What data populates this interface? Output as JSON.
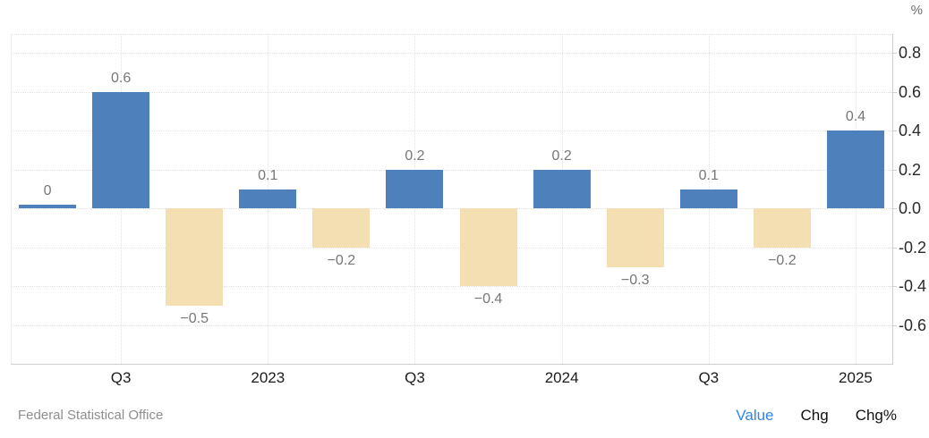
{
  "header": {
    "unit_label": "%"
  },
  "chart_data": {
    "type": "bar",
    "title": "",
    "ylabel": "%",
    "xlabel": "",
    "grid": true,
    "legend_position": "none",
    "ylim": [
      -0.8,
      0.9
    ],
    "values": [
      0,
      0.6,
      -0.5,
      0.1,
      -0.2,
      0.2,
      -0.4,
      0.2,
      -0.3,
      0.1,
      -0.2,
      0.4
    ],
    "bar_labels": [
      "0",
      "0.6",
      "−0.5",
      "0.1",
      "−0.2",
      "0.2",
      "−0.4",
      "0.2",
      "−0.3",
      "0.1",
      "−0.2",
      "0.4"
    ],
    "x_tick_labels": [
      "Q3",
      "2023",
      "Q3",
      "2024",
      "Q3",
      "2025"
    ],
    "x_tick_bar_indexes": [
      1,
      3,
      5,
      7,
      9,
      11
    ],
    "y_tick_labels": [
      "0.8",
      "0.6",
      "0.4",
      "0.2",
      "0.0",
      "-0.2",
      "-0.4",
      "-0.6"
    ],
    "y_tick_values": [
      0.8,
      0.6,
      0.4,
      0.2,
      0.0,
      -0.2,
      -0.4,
      -0.6
    ],
    "positive_color": "#4e80bc",
    "negative_color": "#f4dfb3"
  },
  "footer": {
    "source": "Federal Statistical Office",
    "links": [
      {
        "label": "Value",
        "active": true
      },
      {
        "label": "Chg",
        "active": false
      },
      {
        "label": "Chg%",
        "active": false
      }
    ]
  }
}
